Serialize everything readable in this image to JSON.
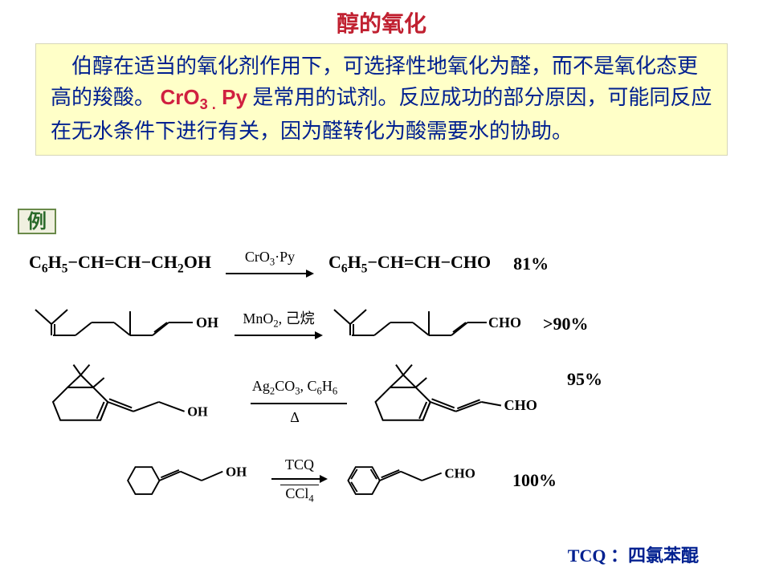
{
  "colors": {
    "title": "#c02030",
    "desc_bg": "#ffffc8",
    "desc_text": "#002090",
    "reagent": "#d02040",
    "badge_text": "#2a6a2a",
    "footer": "#002090",
    "black": "#000000"
  },
  "fonts": {
    "title_size": 28,
    "body_size": 26,
    "yield_size": 22,
    "footer_size": 22
  },
  "title": "醇的氧化",
  "description": {
    "part1": "　伯醇在适当的氧化剂作用下，可选择性地氧化为醛，而不是氧化态更高的羧酸。 ",
    "reagent_html": "CrO<sub>3 .</sub> Py",
    "part2": " 是常用的试剂。反应成功的部分原因，可能同反应在无水条件下进行有关，因为醛转化为酸需要水的协助。"
  },
  "example_label": "例",
  "reactions": [
    {
      "start_left": "C<sub>6</sub>H<sub>5</sub>−CH=CH−CH<sub>2</sub>OH",
      "reagent_top": "CrO<sub>3</sub>·Py",
      "reagent_bot": "",
      "product_right": "C<sub>6</sub>H<sub>5</sub>−CH=CH−CHO",
      "yield": "81%",
      "type": "text"
    },
    {
      "start_svg": "geraniol",
      "reagent_top": "MnO<sub>2</sub>, 己烷",
      "reagent_bot": "",
      "product_svg": "geranial",
      "yield": ">90%",
      "type": "svg"
    },
    {
      "start_svg": "pinene_oh",
      "reagent_top": "Ag<sub>2</sub>CO<sub>3</sub>, C<sub>6</sub>H<sub>6</sub>",
      "reagent_bot": "Δ",
      "product_svg": "pinene_cho",
      "yield": "95%",
      "type": "svg-tall"
    },
    {
      "start_svg": "cyclohex_oh",
      "reagent_top": "TCQ",
      "reagent_bot": "CCl<sub>4</sub>",
      "product_svg": "cyclohex_cho",
      "yield": "100%",
      "type": "svg"
    }
  ],
  "footer": {
    "abbrev": "TCQ",
    "sep": " ：",
    "full": "四氯苯醌"
  }
}
